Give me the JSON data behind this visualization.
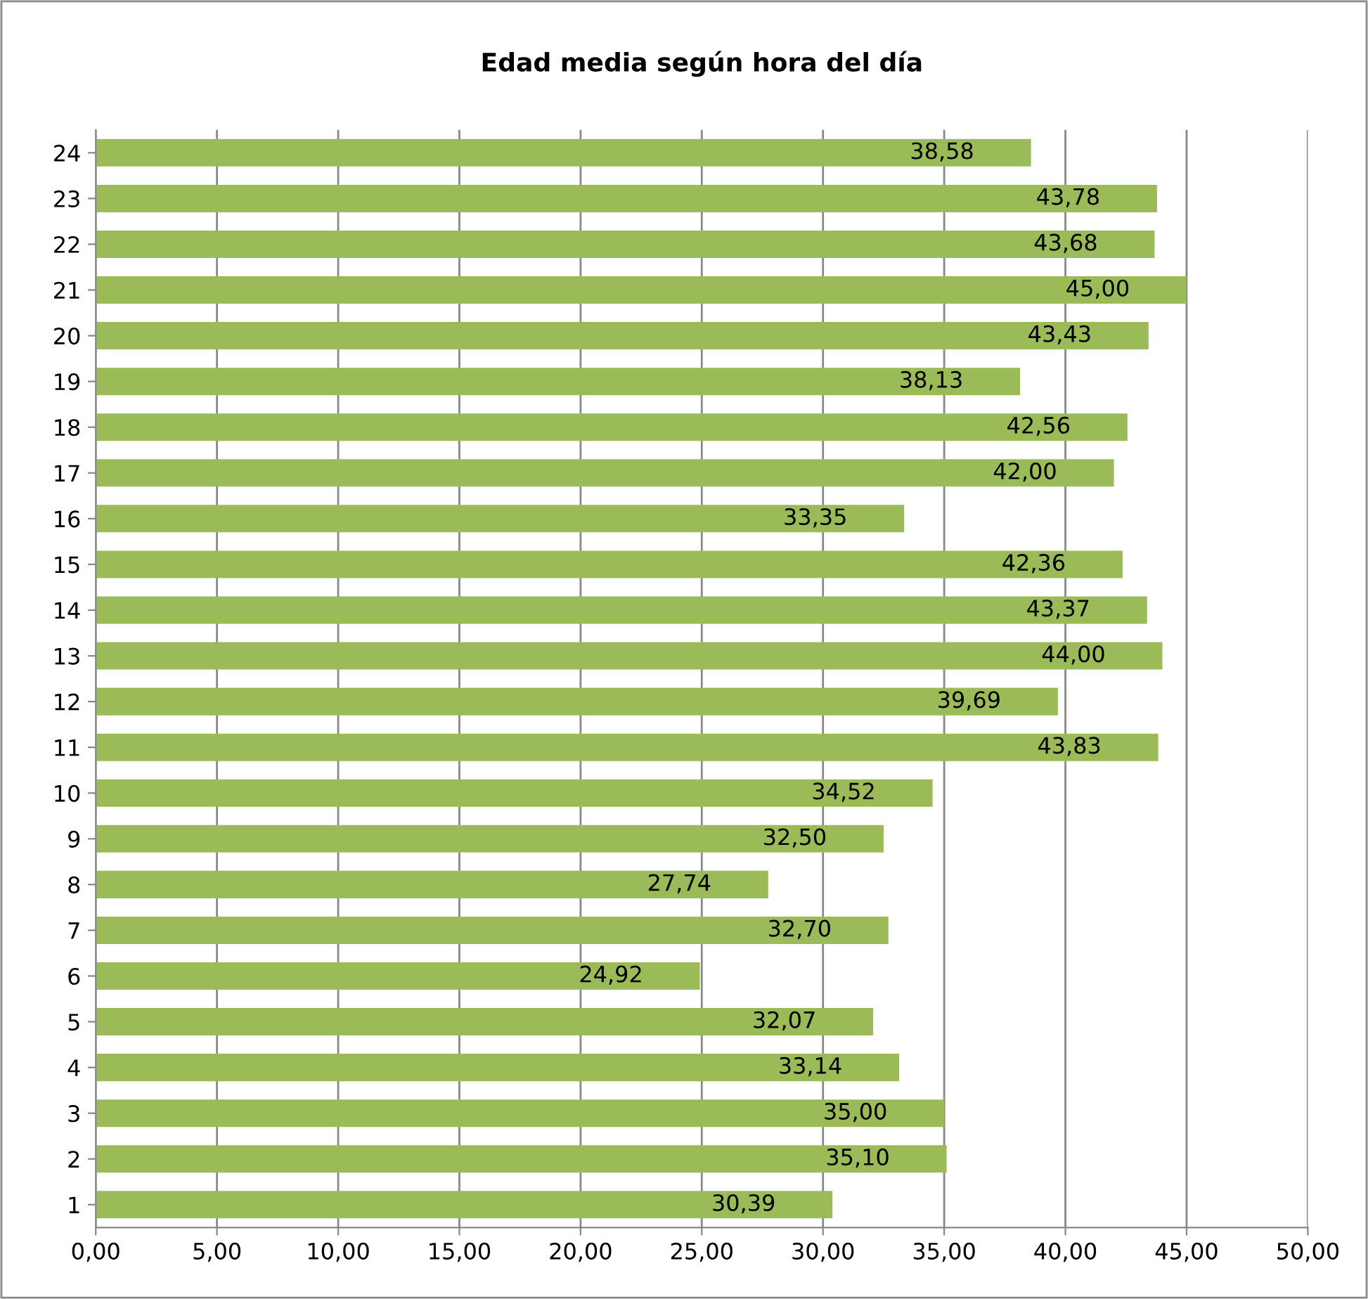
{
  "chart_data": {
    "type": "bar",
    "orientation": "horizontal",
    "title": "Edad media según hora del día",
    "categories": [
      "24",
      "23",
      "22",
      "21",
      "20",
      "19",
      "18",
      "17",
      "16",
      "15",
      "14",
      "13",
      "12",
      "11",
      "10",
      "9",
      "8",
      "7",
      "6",
      "5",
      "4",
      "3",
      "2",
      "1"
    ],
    "values": [
      38.58,
      43.78,
      43.68,
      45.0,
      43.43,
      38.13,
      42.56,
      42.0,
      33.35,
      42.36,
      43.37,
      44.0,
      39.69,
      43.83,
      34.52,
      32.5,
      27.74,
      32.7,
      24.92,
      32.07,
      33.14,
      35.0,
      35.1,
      30.39
    ],
    "value_labels": [
      "38,58",
      "43,78",
      "43,68",
      "45,00",
      "43,43",
      "38,13",
      "42,56",
      "42,00",
      "33,35",
      "42,36",
      "43,37",
      "44,00",
      "39,69",
      "43,83",
      "34,52",
      "32,50",
      "27,74",
      "32,70",
      "24,92",
      "32,07",
      "33,14",
      "35,00",
      "35,10",
      "30,39"
    ],
    "color": "#9bbb59",
    "xlim": [
      0,
      50
    ],
    "xticks": [
      {
        "value": 0,
        "label": "0,00"
      },
      {
        "value": 5,
        "label": "5,00"
      },
      {
        "value": 10,
        "label": "10,00"
      },
      {
        "value": 15,
        "label": "15,00"
      },
      {
        "value": 20,
        "label": "20,00"
      },
      {
        "value": 25,
        "label": "25,00"
      },
      {
        "value": 30,
        "label": "30,00"
      },
      {
        "value": 35,
        "label": "35,00"
      },
      {
        "value": 40,
        "label": "40,00"
      },
      {
        "value": 45,
        "label": "45,00"
      },
      {
        "value": 50,
        "label": "50,00"
      }
    ],
    "grid": "x"
  }
}
